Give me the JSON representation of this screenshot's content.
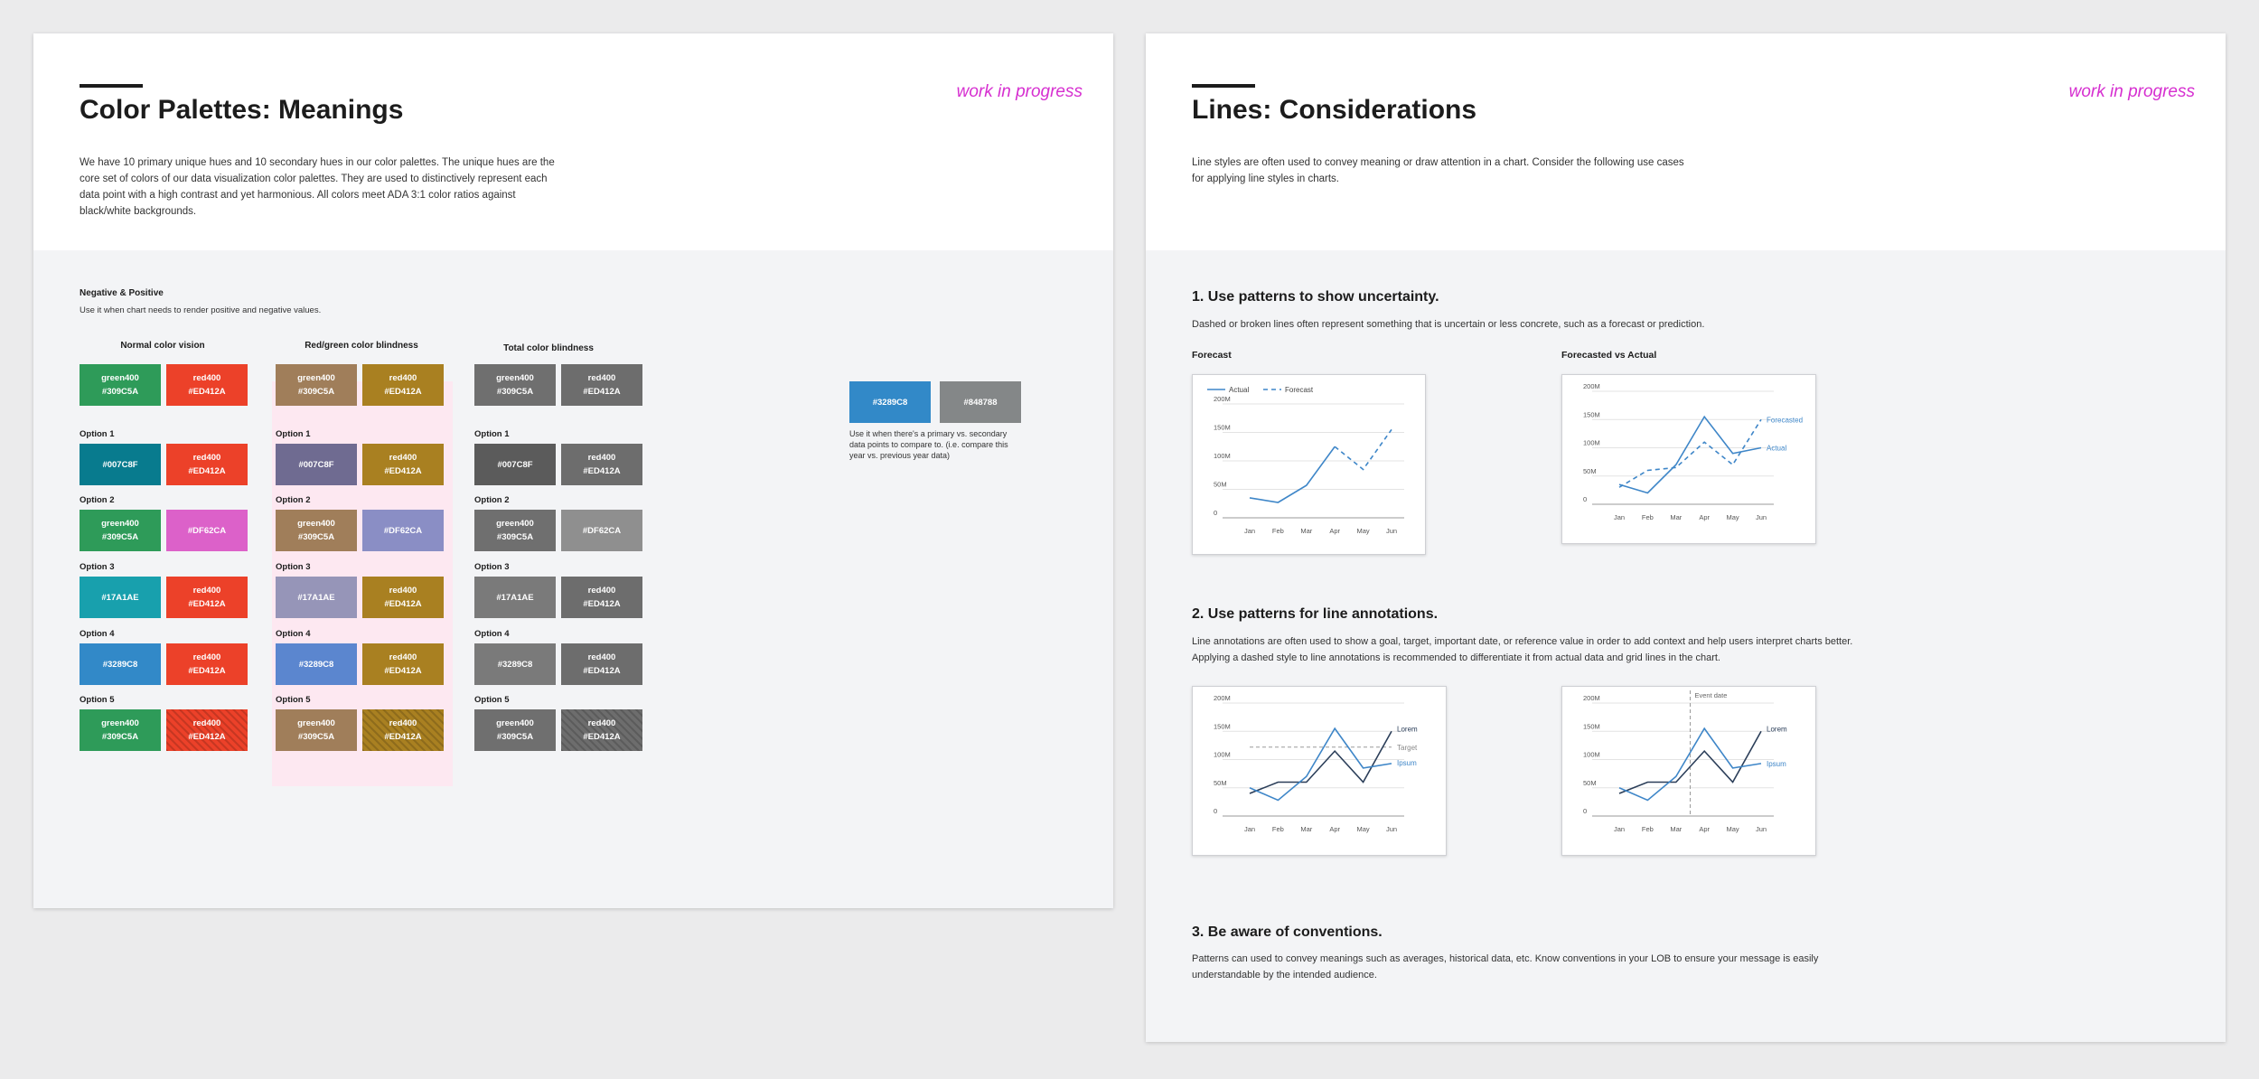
{
  "colors": {
    "green400": "#309C5A",
    "red400": "#ED412A",
    "blue_teal": "#007C8F",
    "magenta": "#DF62CA",
    "teal": "#17A1AE",
    "blue": "#3289C8",
    "gray": "#848788",
    "wip": "#d62fd0",
    "chart_line": "#3e86c8",
    "chart_dark": "#2b3e59"
  },
  "left": {
    "title": "Color Palettes: Meanings",
    "wip": "work in progress",
    "intro": "We have 10 primary unique hues and 10 secondary hues in our color palettes. The unique hues are the core set of colors of our data visualization color palettes. They are used to distinctively represent each data point with a high contrast and yet harmonious. All colors meet ADA 3:1 color ratios against black/white backgrounds.",
    "section_title": "Negative & Positive",
    "section_desc": "Use it when chart needs to render positive and negative values.",
    "columns": [
      "Normal color vision",
      "Red/green color blindness",
      "Total color blindness"
    ],
    "option_labels": [
      "Option 1",
      "Option 2",
      "Option 3",
      "Option 4",
      "Option 5"
    ],
    "rows": [
      {
        "label": "",
        "sw": [
          {
            "t1": "green400",
            "t2": "#309C5A",
            "bg": "#2e9b59"
          },
          {
            "t1": "red400",
            "t2": "#ED412A",
            "bg": "#ec4129"
          },
          {
            "t1": "green400",
            "t2": "#309C5A",
            "bg": "#a07e5a"
          },
          {
            "t1": "red400",
            "t2": "#ED412A",
            "bg": "#a98021"
          },
          {
            "t1": "green400",
            "t2": "#309C5A",
            "bg": "#6f6f6f"
          },
          {
            "t1": "red400",
            "t2": "#ED412A",
            "bg": "#6d6d6d"
          }
        ]
      },
      {
        "label": "Option 1",
        "sw": [
          {
            "t1": "#007C8F",
            "t2": "",
            "bg": "#087b8e"
          },
          {
            "t1": "red400",
            "t2": "#ED412A",
            "bg": "#ec4129"
          },
          {
            "t1": "#007C8F",
            "t2": "",
            "bg": "#6f6b91"
          },
          {
            "t1": "red400",
            "t2": "#ED412A",
            "bg": "#a98021"
          },
          {
            "t1": "#007C8F",
            "t2": "",
            "bg": "#5b5b5b"
          },
          {
            "t1": "red400",
            "t2": "#ED412A",
            "bg": "#6d6d6d"
          }
        ]
      },
      {
        "label": "Option 2",
        "sw": [
          {
            "t1": "green400",
            "t2": "#309C5A",
            "bg": "#2e9b59"
          },
          {
            "t1": "#DF62CA",
            "t2": "",
            "bg": "#dc61c9"
          },
          {
            "t1": "green400",
            "t2": "#309C5A",
            "bg": "#a07e5a"
          },
          {
            "t1": "#DF62CA",
            "t2": "",
            "bg": "#8a8ec5"
          },
          {
            "t1": "green400",
            "t2": "#309C5A",
            "bg": "#6f6f6f"
          },
          {
            "t1": "#DF62CA",
            "t2": "",
            "bg": "#8f8f8f"
          }
        ]
      },
      {
        "label": "Option 3",
        "sw": [
          {
            "t1": "#17A1AE",
            "t2": "",
            "bg": "#18a0ad"
          },
          {
            "t1": "red400",
            "t2": "#ED412A",
            "bg": "#ec4129"
          },
          {
            "t1": "#17A1AE",
            "t2": "",
            "bg": "#9695b8"
          },
          {
            "t1": "red400",
            "t2": "#ED412A",
            "bg": "#a98021"
          },
          {
            "t1": "#17A1AE",
            "t2": "",
            "bg": "#7a7a7a"
          },
          {
            "t1": "red400",
            "t2": "#ED412A",
            "bg": "#6d6d6d"
          }
        ]
      },
      {
        "label": "Option 4",
        "sw": [
          {
            "t1": "#3289C8",
            "t2": "",
            "bg": "#3289c8"
          },
          {
            "t1": "red400",
            "t2": "#ED412A",
            "bg": "#ec4129"
          },
          {
            "t1": "#3289C8",
            "t2": "",
            "bg": "#5b86cf"
          },
          {
            "t1": "red400",
            "t2": "#ED412A",
            "bg": "#a98021"
          },
          {
            "t1": "#3289C8",
            "t2": "",
            "bg": "#7a7a7a"
          },
          {
            "t1": "red400",
            "t2": "#ED412A",
            "bg": "#6d6d6d"
          }
        ]
      },
      {
        "label": "Option 5",
        "sw": [
          {
            "t1": "green400",
            "t2": "#309C5A",
            "bg": "#2e9b59"
          },
          {
            "t1": "red400",
            "t2": "#ED412A",
            "bg": "#ec4129",
            "hatch": true
          },
          {
            "t1": "green400",
            "t2": "#309C5A",
            "bg": "#a07e5a"
          },
          {
            "t1": "red400",
            "t2": "#ED412A",
            "bg": "#a98021",
            "hatch": true
          },
          {
            "t1": "green400",
            "t2": "#309C5A",
            "bg": "#6f6f6f"
          },
          {
            "t1": "red400",
            "t2": "#ED412A",
            "bg": "#6d6d6d",
            "hatch": true
          }
        ]
      }
    ],
    "secondary": {
      "sw1": "#3289C8",
      "sw2": "#848788",
      "note": "Use it when there's a primary vs. secondary data points to compare to. (i.e. compare this year vs. previous year data)"
    }
  },
  "right": {
    "title": "Lines: Considerations",
    "wip": "work in progress",
    "intro": "Line styles are often used to convey meaning or draw attention in a chart. Consider the following use cases for applying line styles in charts.",
    "s1_title": "1. Use patterns to show uncertainty.",
    "s1_desc": "Dashed or broken lines often represent something that is uncertain or less concrete, such as a forecast or prediction.",
    "chart1_caption": "Forecast",
    "chart2_caption": "Forecasted vs Actual",
    "s2_title": "2. Use patterns for line annotations.",
    "s2_desc": "Line annotations are often used to show a goal, target, important date, or reference value in order to add context and help users interpret charts better. Applying a dashed style to line annotations is recommended to differentiate it from actual data and grid lines in the chart.",
    "s3_title": "3. Be aware of conventions.",
    "s3_desc": "Patterns can used to convey meanings such as averages, historical data, etc. Know conventions in your LOB to ensure your message is easily understandable by the intended audience."
  },
  "chart_data": [
    {
      "type": "line",
      "x": [
        "Jan",
        "Feb",
        "Mar",
        "Apr",
        "May",
        "Jun"
      ],
      "yticks": [
        "0",
        "50M",
        "100M",
        "150M",
        "200M"
      ],
      "ylim": [
        0,
        200
      ],
      "legend": [
        "Actual",
        "Forecast"
      ],
      "series": [
        {
          "name": "Actual",
          "values": [
            35,
            27,
            57,
            125,
            null,
            null
          ],
          "dash": false
        },
        {
          "name": "Forecast",
          "values": [
            null,
            null,
            null,
            125,
            85,
            155
          ],
          "dash": true
        }
      ]
    },
    {
      "type": "line",
      "x": [
        "Jan",
        "Feb",
        "Mar",
        "Apr",
        "May",
        "Jun"
      ],
      "yticks": [
        "0",
        "50M",
        "100M",
        "150M",
        "200M"
      ],
      "ylim": [
        0,
        200
      ],
      "labels": [
        "Forecasted",
        "Actual"
      ],
      "series": [
        {
          "name": "Actual",
          "values": [
            35,
            20,
            70,
            155,
            90,
            100
          ],
          "dash": false
        },
        {
          "name": "Forecasted",
          "values": [
            30,
            60,
            65,
            110,
            70,
            150
          ],
          "dash": true
        }
      ]
    },
    {
      "type": "line",
      "x": [
        "Jan",
        "Feb",
        "Mar",
        "Apr",
        "May",
        "Jun"
      ],
      "yticks": [
        "0",
        "50M",
        "100M",
        "150M",
        "200M"
      ],
      "ylim": [
        0,
        200
      ],
      "labels": [
        "Lorem",
        "Target",
        "Ipsum"
      ],
      "target": 122,
      "series": [
        {
          "name": "Lorem",
          "values": [
            40,
            60,
            60,
            115,
            60,
            150
          ],
          "dash": false,
          "dark": true
        },
        {
          "name": "Ipsum",
          "values": [
            50,
            28,
            70,
            155,
            85,
            93
          ],
          "dash": false
        }
      ]
    },
    {
      "type": "line",
      "x": [
        "Jan",
        "Feb",
        "Mar",
        "Apr",
        "May",
        "Jun"
      ],
      "yticks": [
        "0",
        "50M",
        "100M",
        "150M",
        "200M"
      ],
      "ylim": [
        0,
        200
      ],
      "labels": [
        "Lorem",
        "Ipsum"
      ],
      "event_label": "Event date",
      "event_x": 2.5,
      "series": [
        {
          "name": "Lorem",
          "values": [
            40,
            60,
            60,
            115,
            60,
            150
          ],
          "dash": false,
          "dark": true
        },
        {
          "name": "Ipsum",
          "values": [
            50,
            28,
            70,
            155,
            85,
            93
          ],
          "dash": false
        }
      ]
    }
  ]
}
